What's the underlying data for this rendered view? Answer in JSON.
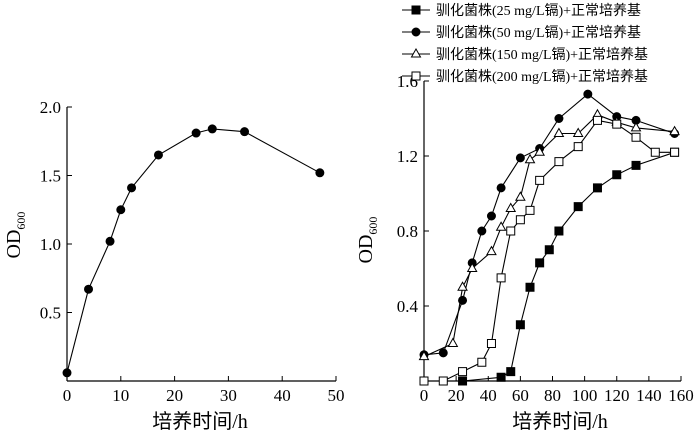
{
  "chart_data": [
    {
      "type": "line",
      "xlabel": "培养时间/h",
      "ylabel": "OD",
      "ylabel_sub": "600",
      "xlim": [
        0,
        50
      ],
      "ylim": [
        0,
        2.0
      ],
      "xticks": [
        0,
        10,
        20,
        30,
        40,
        50
      ],
      "yticks": [
        0.5,
        1.0,
        1.5,
        2.0
      ],
      "ytick_labels": [
        "0.5",
        "1.0",
        "1.5",
        "2.0"
      ],
      "grid": false,
      "series": [
        {
          "marker": "circle-filled",
          "x": [
            0,
            4,
            8,
            10,
            12,
            17,
            24,
            27,
            33,
            47
          ],
          "y": [
            0.06,
            0.67,
            1.02,
            1.25,
            1.41,
            1.65,
            1.81,
            1.84,
            1.82,
            1.52
          ]
        }
      ]
    },
    {
      "type": "line",
      "xlabel": "培养时间/h",
      "ylabel": "OD",
      "ylabel_sub": "600",
      "xlim": [
        0,
        160
      ],
      "ylim": [
        0,
        1.6
      ],
      "xticks": [
        0,
        20,
        40,
        60,
        80,
        100,
        120,
        140,
        160
      ],
      "yticks": [
        0.4,
        0.8,
        1.2,
        1.6
      ],
      "ytick_labels": [
        "0.4",
        "0.8",
        "1.2",
        "1.6"
      ],
      "grid": false,
      "legend_position": "top-right",
      "series": [
        {
          "name": "驯化菌株(25 mg/L镉)+正常培养基",
          "marker": "square-filled",
          "x": [
            0,
            24,
            48,
            54,
            60,
            66,
            72,
            78,
            84,
            96,
            108,
            120,
            132,
            156
          ],
          "y": [
            0.0,
            0.0,
            0.02,
            0.05,
            0.3,
            0.5,
            0.63,
            0.7,
            0.8,
            0.93,
            1.03,
            1.1,
            1.15,
            1.22
          ]
        },
        {
          "name": "驯化菌株(50 mg/L镉)+正常培养基",
          "marker": "circle-filled",
          "x": [
            0,
            12,
            24,
            30,
            36,
            42,
            48,
            60,
            72,
            84,
            102,
            120,
            132,
            156
          ],
          "y": [
            0.14,
            0.15,
            0.43,
            0.63,
            0.8,
            0.88,
            1.03,
            1.19,
            1.24,
            1.4,
            1.53,
            1.41,
            1.39,
            1.32
          ]
        },
        {
          "name": "驯化菌株(150 mg/L镉)+正常培养基",
          "marker": "triangle-open",
          "x": [
            0,
            18,
            24,
            30,
            42,
            48,
            54,
            60,
            66,
            72,
            84,
            96,
            108,
            120,
            132,
            156
          ],
          "y": [
            0.13,
            0.2,
            0.5,
            0.6,
            0.69,
            0.82,
            0.92,
            0.98,
            1.18,
            1.22,
            1.32,
            1.32,
            1.42,
            1.38,
            1.35,
            1.33
          ]
        },
        {
          "name": "驯化菌株(200 mg/L镉)+正常培养基",
          "marker": "square-open",
          "x": [
            0,
            12,
            24,
            36,
            42,
            48,
            54,
            60,
            66,
            72,
            84,
            96,
            108,
            120,
            132,
            144,
            156
          ],
          "y": [
            0.0,
            0.0,
            0.05,
            0.1,
            0.2,
            0.55,
            0.8,
            0.86,
            0.91,
            1.07,
            1.17,
            1.25,
            1.39,
            1.37,
            1.3,
            1.22,
            1.22
          ]
        }
      ]
    }
  ]
}
